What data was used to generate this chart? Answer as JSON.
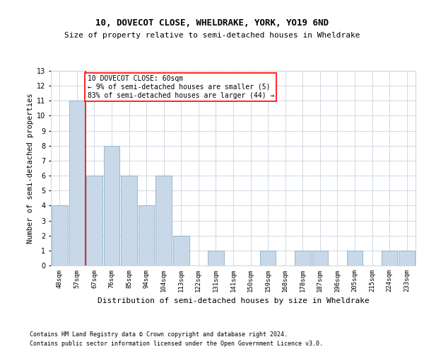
{
  "title": "10, DOVECOT CLOSE, WHELDRAKE, YORK, YO19 6ND",
  "subtitle": "Size of property relative to semi-detached houses in Wheldrake",
  "xlabel": "Distribution of semi-detached houses by size in Wheldrake",
  "ylabel": "Number of semi-detached properties",
  "categories": [
    "48sqm",
    "57sqm",
    "67sqm",
    "76sqm",
    "85sqm",
    "94sqm",
    "104sqm",
    "113sqm",
    "122sqm",
    "131sqm",
    "141sqm",
    "150sqm",
    "159sqm",
    "168sqm",
    "178sqm",
    "187sqm",
    "196sqm",
    "205sqm",
    "215sqm",
    "224sqm",
    "233sqm"
  ],
  "values": [
    4,
    11,
    6,
    8,
    6,
    4,
    6,
    2,
    0,
    1,
    0,
    0,
    1,
    0,
    1,
    1,
    0,
    1,
    0,
    1,
    1
  ],
  "bar_color": "#c8d8e8",
  "bar_edgecolor": "#8aafc8",
  "red_line_x": 1.5,
  "annotation_text": "10 DOVECOT CLOSE: 60sqm\n← 9% of semi-detached houses are smaller (5)\n83% of semi-detached houses are larger (44) →",
  "ylim": [
    0,
    13
  ],
  "yticks": [
    0,
    1,
    2,
    3,
    4,
    5,
    6,
    7,
    8,
    9,
    10,
    11,
    12,
    13
  ],
  "footer1": "Contains HM Land Registry data © Crown copyright and database right 2024.",
  "footer2": "Contains public sector information licensed under the Open Government Licence v3.0.",
  "grid_color": "#d0d8e4",
  "background_color": "#ffffff",
  "fig_width": 6.0,
  "fig_height": 5.0,
  "title_fontsize": 9,
  "subtitle_fontsize": 8,
  "ylabel_fontsize": 7.5,
  "xlabel_fontsize": 8,
  "ytick_fontsize": 7,
  "xtick_fontsize": 6.5,
  "annotation_fontsize": 7,
  "footer_fontsize": 6
}
